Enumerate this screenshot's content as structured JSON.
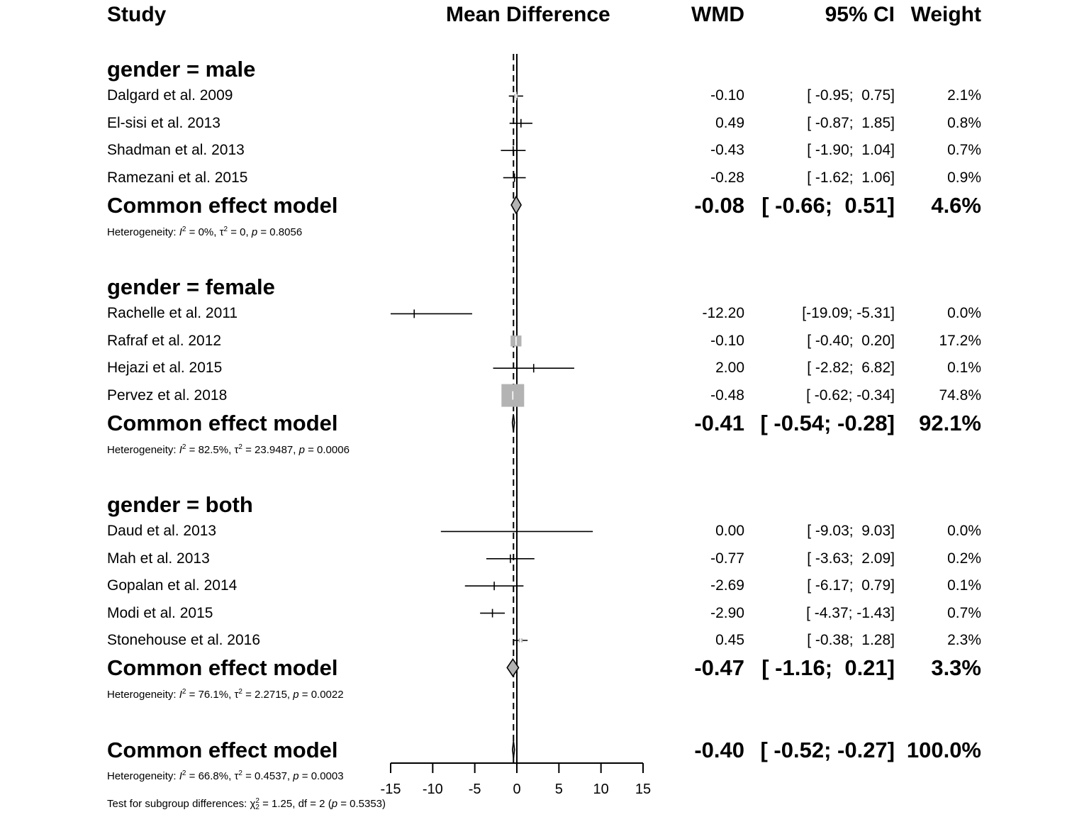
{
  "headers": {
    "study": "Study",
    "mean_difference": "Mean Difference",
    "wmd": "WMD",
    "ci": "95% CI",
    "weight": "Weight"
  },
  "colors": {
    "line": "#000000",
    "diamond_fill": "#b3b3b3",
    "square_fill": "#b3b3b3",
    "square_edge": "#000000",
    "background": "#ffffff"
  },
  "chart_data": {
    "type": "forest",
    "xlabel": "",
    "xlim": [
      -15,
      15
    ],
    "xticks": [
      -15,
      -10,
      -5,
      0,
      5,
      10,
      15
    ],
    "reference_line": 0,
    "overall_effect_line": -0.4,
    "groups": [
      {
        "label": "gender = male",
        "studies": [
          {
            "name": "Dalgard et al. 2009",
            "wmd": -0.1,
            "lower": -0.95,
            "upper": 0.75,
            "wmd_text": "-0.10",
            "ci_text": "[ -0.95;  0.75]",
            "weight_text": "2.1%",
            "weight": 2.1
          },
          {
            "name": "El-sisi et al. 2013",
            "wmd": 0.49,
            "lower": -0.87,
            "upper": 1.85,
            "wmd_text": "0.49",
            "ci_text": "[ -0.87;  1.85]",
            "weight_text": "0.8%",
            "weight": 0.8
          },
          {
            "name": "Shadman et al. 2013",
            "wmd": -0.43,
            "lower": -1.9,
            "upper": 1.04,
            "wmd_text": "-0.43",
            "ci_text": "[ -1.90;  1.04]",
            "weight_text": "0.7%",
            "weight": 0.7
          },
          {
            "name": "Ramezani et al. 2015",
            "wmd": -0.28,
            "lower": -1.62,
            "upper": 1.06,
            "wmd_text": "-0.28",
            "ci_text": "[ -1.62;  1.06]",
            "weight_text": "0.9%",
            "weight": 0.9
          }
        ],
        "pooled": {
          "name": "Common effect model",
          "wmd": -0.08,
          "lower": -0.66,
          "upper": 0.51,
          "wmd_text": "-0.08",
          "ci_text": "[ -0.66;  0.51]",
          "weight_text": "4.6%"
        },
        "heterogeneity": {
          "prefix": "Heterogeneity: ",
          "i2_label": "I",
          "i2_value": " = 0%, ",
          "tau_label": "τ",
          "tau_value": " = 0, ",
          "p_label": "p",
          "p_value": " = 0.8056"
        }
      },
      {
        "label": "gender = female",
        "studies": [
          {
            "name": "Rachelle et al. 2011",
            "wmd": -12.2,
            "lower": -19.09,
            "upper": -5.31,
            "wmd_text": "-12.20",
            "ci_text": "[-19.09; -5.31]",
            "weight_text": "0.0%",
            "weight": 0.0
          },
          {
            "name": "Rafraf et al. 2012",
            "wmd": -0.1,
            "lower": -0.4,
            "upper": 0.2,
            "wmd_text": "-0.10",
            "ci_text": "[ -0.40;  0.20]",
            "weight_text": "17.2%",
            "weight": 17.2
          },
          {
            "name": "Hejazi et al. 2015",
            "wmd": 2.0,
            "lower": -2.82,
            "upper": 6.82,
            "wmd_text": "2.00",
            "ci_text": "[ -2.82;  6.82]",
            "weight_text": "0.1%",
            "weight": 0.1
          },
          {
            "name": "Pervez et al. 2018",
            "wmd": -0.48,
            "lower": -0.62,
            "upper": -0.34,
            "wmd_text": "-0.48",
            "ci_text": "[ -0.62; -0.34]",
            "weight_text": "74.8%",
            "weight": 74.8
          }
        ],
        "pooled": {
          "name": "Common effect model",
          "wmd": -0.41,
          "lower": -0.54,
          "upper": -0.28,
          "wmd_text": "-0.41",
          "ci_text": "[ -0.54; -0.28]",
          "weight_text": "92.1%"
        },
        "heterogeneity": {
          "prefix": "Heterogeneity: ",
          "i2_label": "I",
          "i2_value": " = 82.5%, ",
          "tau_label": "τ",
          "tau_value": " = 23.9487, ",
          "p_label": "p",
          "p_value": " = 0.0006"
        }
      },
      {
        "label": "gender = both",
        "studies": [
          {
            "name": "Daud et al. 2013",
            "wmd": 0.0,
            "lower": -9.03,
            "upper": 9.03,
            "wmd_text": "0.00",
            "ci_text": "[ -9.03;  9.03]",
            "weight_text": "0.0%",
            "weight": 0.0
          },
          {
            "name": "Mah et al. 2013",
            "wmd": -0.77,
            "lower": -3.63,
            "upper": 2.09,
            "wmd_text": "-0.77",
            "ci_text": "[ -3.63;  2.09]",
            "weight_text": "0.2%",
            "weight": 0.2
          },
          {
            "name": "Gopalan et al. 2014",
            "wmd": -2.69,
            "lower": -6.17,
            "upper": 0.79,
            "wmd_text": "-2.69",
            "ci_text": "[ -6.17;  0.79]",
            "weight_text": "0.1%",
            "weight": 0.1
          },
          {
            "name": "Modi et al. 2015",
            "wmd": -2.9,
            "lower": -4.37,
            "upper": -1.43,
            "wmd_text": "-2.90",
            "ci_text": "[ -4.37; -1.43]",
            "weight_text": "0.7%",
            "weight": 0.7
          },
          {
            "name": "Stonehouse et al. 2016",
            "wmd": 0.45,
            "lower": -0.38,
            "upper": 1.28,
            "wmd_text": "0.45",
            "ci_text": "[ -0.38;  1.28]",
            "weight_text": "2.3%",
            "weight": 2.3
          }
        ],
        "pooled": {
          "name": "Common effect model",
          "wmd": -0.47,
          "lower": -1.16,
          "upper": 0.21,
          "wmd_text": "-0.47",
          "ci_text": "[ -1.16;  0.21]",
          "weight_text": "3.3%"
        },
        "heterogeneity": {
          "prefix": "Heterogeneity: ",
          "i2_label": "I",
          "i2_value": " = 76.1%, ",
          "tau_label": "τ",
          "tau_value": " = 2.2715, ",
          "p_label": "p",
          "p_value": " = 0.0022"
        }
      }
    ],
    "overall": {
      "name": "Common effect model",
      "wmd": -0.4,
      "lower": -0.52,
      "upper": -0.27,
      "wmd_text": "-0.40",
      "ci_text": "[ -0.52; -0.27]",
      "weight_text": "100.0%",
      "heterogeneity": {
        "prefix": "Heterogeneity: ",
        "i2_label": "I",
        "i2_value": " = 66.8%, ",
        "tau_label": "τ",
        "tau_value": " = 0.4537, ",
        "p_label": "p",
        "p_value": " = 0.0003"
      },
      "subgroup_test": {
        "prefix": "Test for subgroup differences: ",
        "chi_label": "χ",
        "chi_value": " = 1.25, df = 2 (",
        "p_label": "p",
        "p_value": " = 0.5353)"
      }
    }
  }
}
